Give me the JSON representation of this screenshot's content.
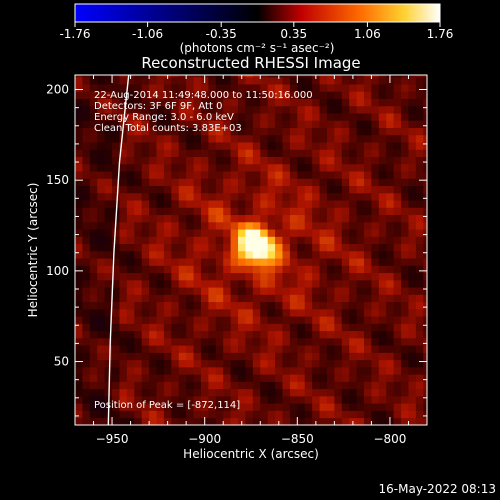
{
  "chart_data": {
    "type": "heatmap",
    "title": "Reconstructed RHESSI Image",
    "xlabel": "Heliocentric X (arcsec)",
    "ylabel": "Heliocentric Y (arcsec)",
    "xlim": [
      -970,
      -780
    ],
    "ylim": [
      15,
      208
    ],
    "x_ticks": [
      -950,
      -900,
      -850,
      -800
    ],
    "y_ticks": [
      50,
      100,
      150,
      200
    ],
    "colorbar": {
      "min": -1.76,
      "max": 1.76,
      "ticks": [
        "-1.76",
        "-1.06",
        "-0.35",
        "0.35",
        "1.06",
        "1.76"
      ],
      "tick_values": [
        -1.76,
        -1.06,
        -0.35,
        0.35,
        1.06,
        1.76
      ],
      "unit_label": "(photons cm⁻² s⁻¹ asec⁻²)",
      "colors": [
        "#0000ff",
        "#000000",
        "#d40000",
        "#ff9000",
        "#ffff60",
        "#ffffff"
      ]
    },
    "annotations": [
      "22-Aug-2014 11:49:48.000 to 11:50:16.000",
      "Detectors: 3F 6F 9F, Att 0",
      "Energy Range: 3.0 - 6.0 keV",
      "Clean     Total counts: 3.83E+03"
    ],
    "peak": {
      "x": -872,
      "y": 114,
      "label": "Position of Peak = [-872,114]"
    },
    "limb_curve": [
      [
        -941,
        208
      ],
      [
        -946,
        160
      ],
      [
        -949,
        110
      ],
      [
        -951,
        60
      ],
      [
        -952,
        15
      ]
    ],
    "limb_color": "#ffffff"
  },
  "timestamp": "16-May-2022 08:13"
}
